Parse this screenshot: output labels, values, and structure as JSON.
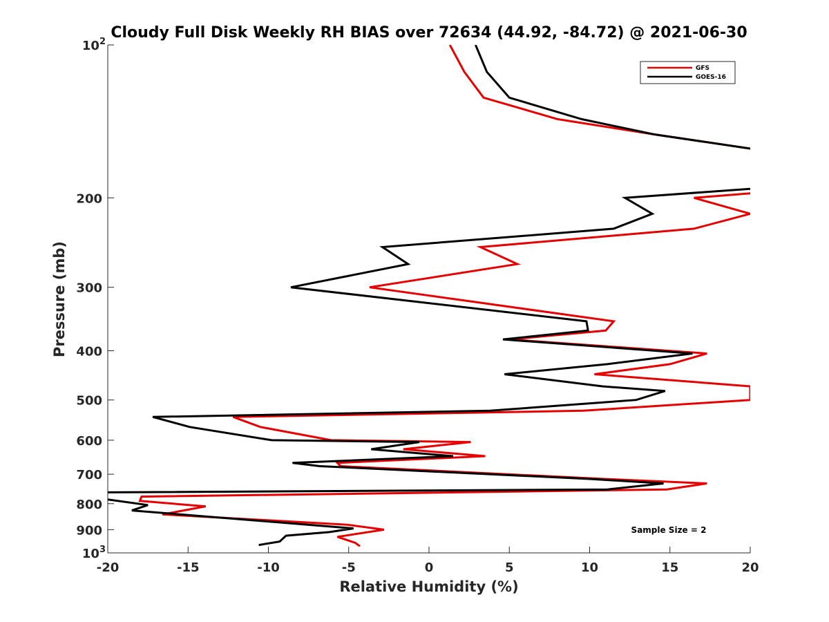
{
  "chart_data": {
    "type": "line",
    "title": "Cloudy Full Disk Weekly RH BIAS over 72634 (44.92, -84.72) @ 2021-06-30",
    "xlabel": "Relative Humidity (%)",
    "ylabel": "Pressure (mb)",
    "xlim": [
      -20,
      20
    ],
    "ylim": [
      100,
      1000
    ],
    "y_scale": "log",
    "y_reversed": true,
    "x_ticks": [
      -20,
      -15,
      -10,
      -5,
      0,
      5,
      10,
      15,
      20
    ],
    "x_tick_labels": [
      "-20",
      "-15",
      "-10",
      "-5",
      "0",
      "5",
      "10",
      "15",
      "20"
    ],
    "y_ticks": [
      100,
      200,
      300,
      400,
      500,
      600,
      700,
      800,
      900,
      1000
    ],
    "y_tick_labels": [
      "10^2",
      "200",
      "300",
      "400",
      "500",
      "600",
      "700",
      "800",
      "900",
      "10^3"
    ],
    "grid": false,
    "legend_position": "top-right",
    "annotation": "Sample Size = 2",
    "series": [
      {
        "name": "GFS",
        "color": "#e60000",
        "points": [
          [
            1.3,
            100
          ],
          [
            2.2,
            113
          ],
          [
            3.4,
            127
          ],
          [
            8.0,
            140
          ],
          [
            14.0,
            150
          ],
          [
            20.0,
            160
          ],
          [
            null,
            null
          ],
          [
            20.0,
            196
          ],
          [
            16.5,
            200
          ],
          [
            20.0,
            215
          ],
          [
            16.5,
            230
          ],
          [
            3.2,
            250
          ],
          [
            5.5,
            270
          ],
          [
            -3.7,
            300
          ],
          [
            11.5,
            350
          ],
          [
            11.0,
            365
          ],
          [
            5.0,
            380
          ],
          [
            17.3,
            405
          ],
          [
            15.0,
            425
          ],
          [
            10.3,
            445
          ],
          [
            20.0,
            470
          ],
          [
            20.0,
            500
          ],
          [
            9.6,
            525
          ],
          [
            -12.2,
            540
          ],
          [
            -10.5,
            565
          ],
          [
            -6.1,
            600
          ],
          [
            2.6,
            605
          ],
          [
            -1.6,
            625
          ],
          [
            3.5,
            645
          ],
          [
            -5.7,
            665
          ],
          [
            -5.5,
            675
          ],
          [
            10.8,
            715
          ],
          [
            17.3,
            730
          ],
          [
            14.8,
            750
          ],
          [
            -17.9,
            775
          ],
          [
            -18.0,
            790
          ],
          [
            -13.9,
            810
          ],
          [
            -16.6,
            840
          ],
          [
            -5.1,
            880
          ],
          [
            -2.8,
            900
          ],
          [
            -5.7,
            930
          ],
          [
            -4.6,
            955
          ],
          [
            -4.3,
            970
          ]
        ]
      },
      {
        "name": "GOES-16",
        "color": "#000000",
        "points": [
          [
            2.9,
            100
          ],
          [
            3.6,
            113
          ],
          [
            5.0,
            127
          ],
          [
            9.5,
            140
          ],
          [
            14.0,
            150
          ],
          [
            20.0,
            160
          ],
          [
            null,
            null
          ],
          [
            20.0,
            192
          ],
          [
            12.2,
            200
          ],
          [
            13.9,
            215
          ],
          [
            11.5,
            230
          ],
          [
            -2.9,
            250
          ],
          [
            -1.3,
            270
          ],
          [
            -8.6,
            300
          ],
          [
            9.8,
            350
          ],
          [
            9.9,
            365
          ],
          [
            4.6,
            380
          ],
          [
            16.4,
            405
          ],
          [
            11.1,
            425
          ],
          [
            4.7,
            445
          ],
          [
            10.8,
            470
          ],
          [
            14.7,
            480
          ],
          [
            12.9,
            500
          ],
          [
            3.8,
            525
          ],
          [
            -17.2,
            540
          ],
          [
            -14.9,
            565
          ],
          [
            -9.8,
            600
          ],
          [
            -0.6,
            605
          ],
          [
            -3.6,
            625
          ],
          [
            1.5,
            645
          ],
          [
            -8.5,
            665
          ],
          [
            -6.8,
            675
          ],
          [
            9.9,
            715
          ],
          [
            14.6,
            730
          ],
          [
            11.1,
            750
          ],
          [
            -20.0,
            760
          ],
          [
            null,
            null
          ],
          [
            -20.0,
            785
          ],
          [
            -17.5,
            805
          ],
          [
            -18.5,
            825
          ],
          [
            -4.7,
            895
          ],
          [
            -6.2,
            910
          ],
          [
            -8.9,
            925
          ],
          [
            -9.3,
            950
          ],
          [
            -10.6,
            965
          ]
        ]
      }
    ]
  }
}
